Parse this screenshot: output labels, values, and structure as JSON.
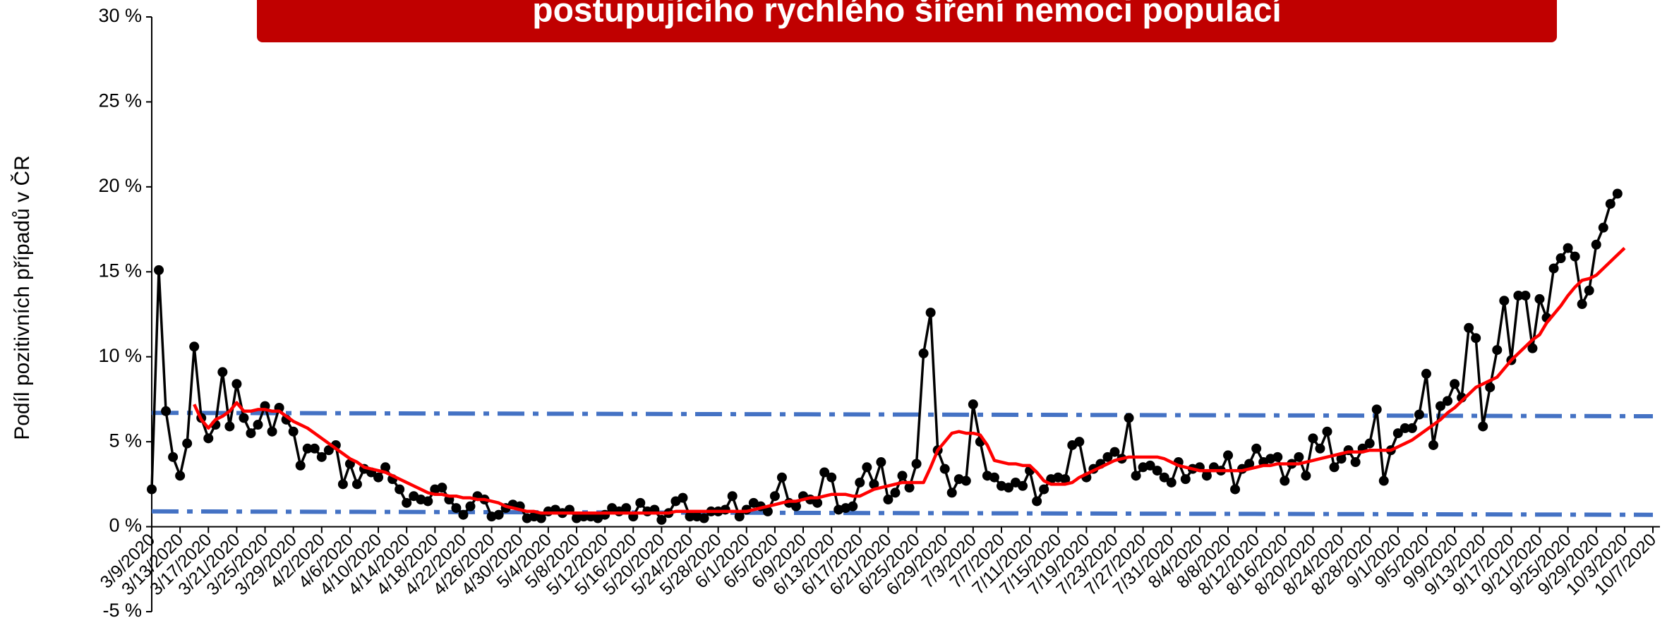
{
  "chart_data": {
    "type": "line",
    "title": "postupujícího rychlého šíření nemoci populací",
    "ylabel": "Podíl pozitivních případů v ČR",
    "ylim": [
      -5,
      30
    ],
    "yticks": [
      {
        "value": -5,
        "label": "-5 %"
      },
      {
        "value": 0,
        "label": "0 %"
      },
      {
        "value": 5,
        "label": "5 %"
      },
      {
        "value": 10,
        "label": "10 %"
      },
      {
        "value": 15,
        "label": "15 %"
      },
      {
        "value": 20,
        "label": "20 %"
      },
      {
        "value": 25,
        "label": "25 %"
      },
      {
        "value": 30,
        "label": "30 %"
      }
    ],
    "categories": [
      "3/9/2020",
      null,
      null,
      null,
      "3/13/2020",
      null,
      null,
      null,
      "3/17/2020",
      null,
      null,
      null,
      "3/21/2020",
      null,
      null,
      null,
      "3/25/2020",
      null,
      null,
      null,
      "3/29/2020",
      null,
      null,
      null,
      "4/2/2020",
      null,
      null,
      null,
      "4/6/2020",
      null,
      null,
      null,
      "4/10/2020",
      null,
      null,
      null,
      "4/14/2020",
      null,
      null,
      null,
      "4/18/2020",
      null,
      null,
      null,
      "4/22/2020",
      null,
      null,
      null,
      "4/26/2020",
      null,
      null,
      null,
      "4/30/2020",
      null,
      null,
      null,
      "5/4/2020",
      null,
      null,
      null,
      "5/8/2020",
      null,
      null,
      null,
      "5/12/2020",
      null,
      null,
      null,
      "5/16/2020",
      null,
      null,
      null,
      "5/20/2020",
      null,
      null,
      null,
      "5/24/2020",
      null,
      null,
      null,
      "5/28/2020",
      null,
      null,
      null,
      "6/1/2020",
      null,
      null,
      null,
      "6/5/2020",
      null,
      null,
      null,
      "6/9/2020",
      null,
      null,
      null,
      "6/13/2020",
      null,
      null,
      null,
      "6/17/2020",
      null,
      null,
      null,
      "6/21/2020",
      null,
      null,
      null,
      "6/25/2020",
      null,
      null,
      null,
      "6/29/2020",
      null,
      null,
      null,
      "7/3/2020",
      null,
      null,
      null,
      "7/7/2020",
      null,
      null,
      null,
      "7/11/2020",
      null,
      null,
      null,
      "7/15/2020",
      null,
      null,
      null,
      "7/19/2020",
      null,
      null,
      null,
      "7/23/2020",
      null,
      null,
      null,
      "7/27/2020",
      null,
      null,
      null,
      "7/31/2020",
      null,
      null,
      null,
      "8/4/2020",
      null,
      null,
      null,
      "8/8/2020",
      null,
      null,
      null,
      "8/12/2020",
      null,
      null,
      null,
      "8/16/2020",
      null,
      null,
      null,
      "8/20/2020",
      null,
      null,
      null,
      "8/24/2020",
      null,
      null,
      null,
      "8/28/2020",
      null,
      null,
      null,
      "9/1/2020",
      null,
      null,
      null,
      "9/5/2020",
      null,
      null,
      null,
      "9/9/2020",
      null,
      null,
      null,
      "9/13/2020",
      null,
      null,
      null,
      "9/17/2020",
      null,
      null,
      null,
      "9/21/2020",
      null,
      null,
      null,
      "9/25/2020",
      null,
      null,
      null,
      "9/29/2020",
      null,
      null,
      null,
      "10/3/2020",
      null,
      null,
      null,
      "10/7/2020"
    ],
    "series": [
      {
        "color": "#000000",
        "markers": true,
        "values": [
          2.2,
          15.1,
          6.8,
          4.1,
          3.0,
          4.9,
          10.6,
          6.4,
          5.2,
          6.0,
          9.1,
          5.9,
          8.4,
          6.4,
          5.5,
          6.0,
          7.1,
          5.6,
          7.0,
          6.3,
          5.6,
          3.6,
          4.6,
          4.6,
          4.1,
          4.5,
          4.8,
          2.5,
          3.7,
          2.5,
          3.4,
          3.2,
          2.9,
          3.5,
          2.8,
          2.2,
          1.4,
          1.8,
          1.6,
          1.5,
          2.2,
          2.3,
          1.6,
          1.1,
          0.7,
          1.2,
          1.8,
          1.6,
          0.6,
          0.7,
          1.1,
          1.3,
          1.2,
          0.5,
          0.6,
          0.5,
          0.9,
          1.0,
          0.8,
          1.0,
          0.5,
          0.6,
          0.6,
          0.5,
          0.7,
          1.1,
          0.9,
          1.1,
          0.6,
          1.4,
          0.9,
          1.0,
          0.4,
          0.8,
          1.5,
          1.7,
          0.6,
          0.6,
          0.5,
          0.9,
          0.9,
          1.0,
          1.8,
          0.6,
          1.0,
          1.4,
          1.2,
          0.9,
          1.8,
          2.9,
          1.4,
          1.2,
          1.8,
          1.6,
          1.4,
          3.2,
          2.9,
          1.0,
          1.1,
          1.2,
          2.6,
          3.5,
          2.5,
          3.8,
          1.6,
          2.0,
          3.0,
          2.3,
          3.7,
          10.2,
          12.6,
          4.5,
          3.4,
          2.0,
          2.8,
          2.7,
          7.2,
          5.0,
          3.0,
          2.9,
          2.4,
          2.3,
          2.6,
          2.4,
          3.3,
          1.5,
          2.2,
          2.8,
          2.9,
          2.8,
          4.8,
          5.0,
          2.9,
          3.4,
          3.7,
          4.1,
          4.4,
          4.0,
          6.4,
          3.0,
          3.5,
          3.6,
          3.3,
          2.9,
          2.6,
          3.8,
          2.8,
          3.4,
          3.5,
          3.0,
          3.5,
          3.3,
          4.2,
          2.2,
          3.4,
          3.7,
          4.6,
          3.8,
          4.0,
          4.1,
          2.7,
          3.7,
          4.1,
          3.0,
          5.2,
          4.6,
          5.6,
          3.5,
          4.0,
          4.5,
          3.8,
          4.6,
          4.9,
          6.9,
          2.7,
          4.5,
          5.5,
          5.8,
          5.8,
          6.6,
          9.0,
          4.8,
          7.1,
          7.4,
          8.4,
          7.6,
          11.7,
          11.1,
          5.9,
          8.2,
          10.4,
          13.3,
          9.8,
          13.6,
          13.6,
          10.5,
          13.4,
          12.3,
          15.2,
          15.8,
          16.4,
          15.9,
          13.1,
          13.9,
          16.6,
          17.6,
          19.0,
          19.6,
          null,
          null,
          null,
          null,
          null
        ]
      },
      {
        "color": "#ff0000",
        "markers": false,
        "values": [
          null,
          null,
          null,
          null,
          null,
          null,
          7.2,
          6.3,
          5.8,
          6.3,
          6.5,
          6.8,
          7.3,
          6.8,
          6.8,
          6.9,
          6.9,
          6.8,
          6.8,
          6.5,
          6.2,
          6.0,
          5.8,
          5.5,
          5.2,
          4.9,
          4.6,
          4.3,
          4.0,
          3.8,
          3.5,
          3.4,
          3.3,
          3.2,
          3.0,
          2.8,
          2.6,
          2.4,
          2.2,
          2.0,
          1.9,
          1.9,
          1.8,
          1.8,
          1.7,
          1.7,
          1.6,
          1.6,
          1.5,
          1.4,
          1.2,
          1.1,
          1.0,
          0.9,
          0.9,
          0.8,
          0.8,
          0.8,
          0.8,
          0.8,
          0.8,
          0.8,
          0.8,
          0.8,
          0.8,
          0.8,
          0.8,
          0.8,
          0.8,
          0.8,
          0.8,
          0.8,
          0.8,
          0.8,
          0.9,
          0.9,
          0.9,
          0.9,
          0.9,
          0.9,
          0.9,
          0.9,
          0.9,
          0.9,
          0.9,
          1.0,
          1.1,
          1.2,
          1.3,
          1.4,
          1.5,
          1.5,
          1.6,
          1.7,
          1.7,
          1.8,
          1.9,
          1.9,
          1.9,
          1.8,
          1.8,
          2.0,
          2.2,
          2.3,
          2.4,
          2.5,
          2.6,
          2.6,
          2.6,
          2.6,
          3.5,
          4.5,
          5.0,
          5.5,
          5.6,
          5.5,
          5.5,
          5.4,
          4.8,
          3.9,
          3.8,
          3.7,
          3.7,
          3.6,
          3.6,
          3.2,
          2.7,
          2.5,
          2.5,
          2.5,
          2.6,
          2.9,
          3.1,
          3.3,
          3.5,
          3.7,
          3.9,
          4.0,
          4.1,
          4.1,
          4.1,
          4.1,
          4.1,
          4.0,
          3.8,
          3.6,
          3.5,
          3.4,
          3.3,
          3.3,
          3.3,
          3.3,
          3.3,
          3.3,
          3.3,
          3.4,
          3.5,
          3.6,
          3.6,
          3.7,
          3.7,
          3.7,
          3.7,
          3.8,
          3.9,
          4.0,
          4.1,
          4.2,
          4.3,
          4.4,
          4.4,
          4.4,
          4.5,
          4.5,
          4.5,
          4.5,
          4.7,
          4.9,
          5.1,
          5.4,
          5.7,
          6.0,
          6.3,
          6.7,
          7.0,
          7.4,
          7.8,
          8.2,
          8.4,
          8.6,
          8.8,
          9.3,
          9.8,
          10.2,
          10.6,
          11.0,
          11.3,
          12.0,
          12.5,
          13.0,
          13.6,
          14.1,
          14.5,
          14.6,
          14.8,
          15.2,
          15.6,
          16.0,
          16.4,
          null,
          null,
          null,
          null
        ]
      }
    ],
    "reference_lines": [
      {
        "color": "#4472c4",
        "values": [
          6.7,
          6.5
        ]
      },
      {
        "color": "#4472c4",
        "values": [
          0.9,
          0.7
        ]
      }
    ]
  }
}
